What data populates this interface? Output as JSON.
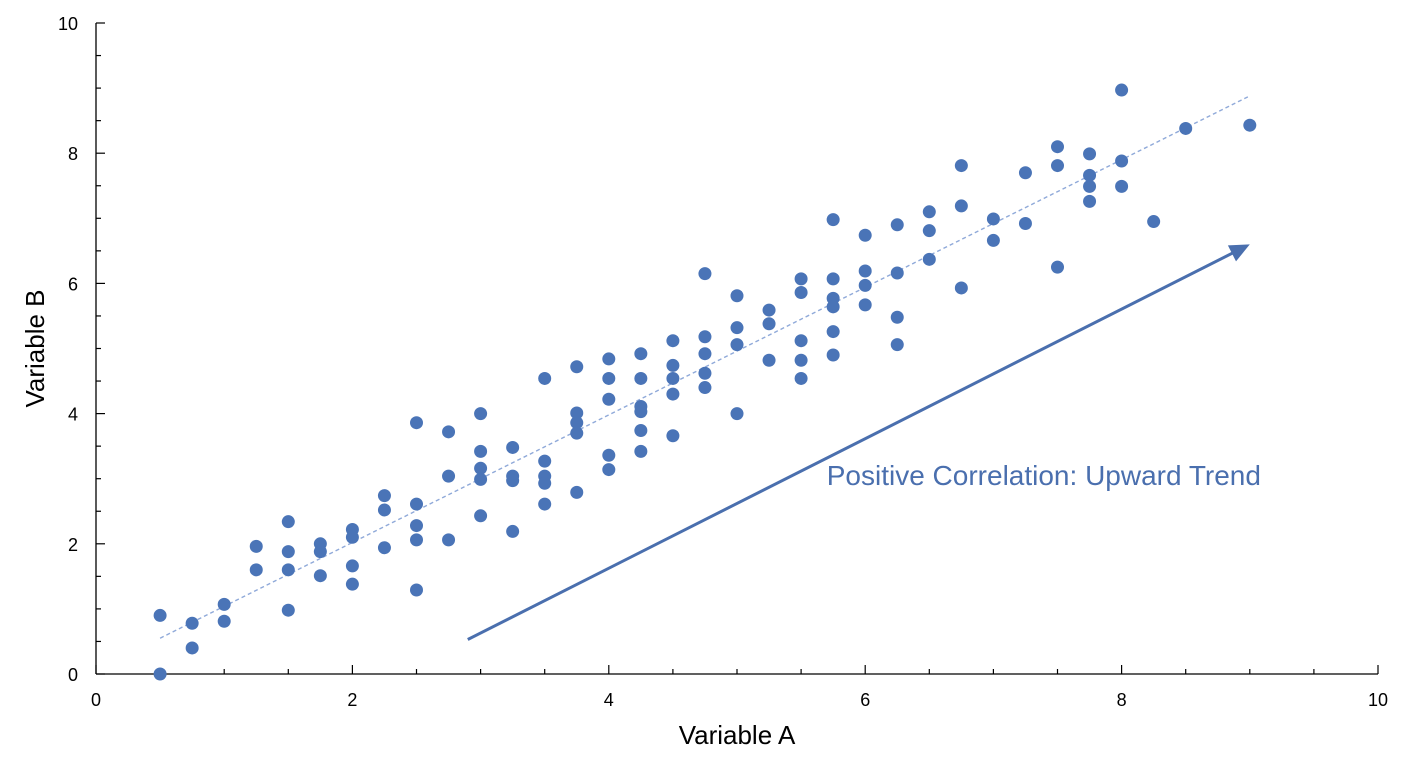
{
  "chart_data": {
    "type": "scatter",
    "title": "",
    "xlabel": "Variable A",
    "ylabel": "Variable B",
    "xlim": [
      0,
      10
    ],
    "ylim": [
      0,
      10
    ],
    "x_ticks": [
      0,
      2,
      4,
      6,
      8,
      10
    ],
    "y_ticks": [
      0,
      2,
      4,
      6,
      8,
      10
    ],
    "x_tick_labels": [
      "0",
      "2",
      "4",
      "6",
      "8",
      "10"
    ],
    "y_tick_labels": [
      "0",
      "2",
      "4",
      "6",
      "8",
      "10"
    ],
    "x_minor_step": 0.5,
    "y_minor_step": 0.5,
    "grid": false,
    "legend": "none",
    "colors": {
      "points": "#4a74b7",
      "trendline": "#8fa9d9",
      "arrow": "#4a6fae",
      "annotation": "#4a6fae"
    },
    "series": [
      {
        "points": [
          [
            0.5,
            0.9
          ],
          [
            0.5,
            0.0
          ],
          [
            0.75,
            0.78
          ],
          [
            0.75,
            0.4
          ],
          [
            1.0,
            1.07
          ],
          [
            1.0,
            0.81
          ],
          [
            1.25,
            1.96
          ],
          [
            1.25,
            1.6
          ],
          [
            1.5,
            2.34
          ],
          [
            1.5,
            1.88
          ],
          [
            1.5,
            1.6
          ],
          [
            1.5,
            0.98
          ],
          [
            1.75,
            2.0
          ],
          [
            1.75,
            1.88
          ],
          [
            1.75,
            1.51
          ],
          [
            2.0,
            2.22
          ],
          [
            2.0,
            2.1
          ],
          [
            2.0,
            1.66
          ],
          [
            2.0,
            1.38
          ],
          [
            2.25,
            2.74
          ],
          [
            2.25,
            2.52
          ],
          [
            2.25,
            1.94
          ],
          [
            2.5,
            3.86
          ],
          [
            2.5,
            2.61
          ],
          [
            2.5,
            2.28
          ],
          [
            2.5,
            2.06
          ],
          [
            2.5,
            1.29
          ],
          [
            2.75,
            3.72
          ],
          [
            2.75,
            3.04
          ],
          [
            2.75,
            2.06
          ],
          [
            3.0,
            4.0
          ],
          [
            3.0,
            3.42
          ],
          [
            3.0,
            3.16
          ],
          [
            3.0,
            2.99
          ],
          [
            3.0,
            2.43
          ],
          [
            3.25,
            3.48
          ],
          [
            3.25,
            3.04
          ],
          [
            3.25,
            2.97
          ],
          [
            3.25,
            2.19
          ],
          [
            3.5,
            4.54
          ],
          [
            3.5,
            3.27
          ],
          [
            3.5,
            3.04
          ],
          [
            3.5,
            2.93
          ],
          [
            3.5,
            2.61
          ],
          [
            3.75,
            4.72
          ],
          [
            3.75,
            4.01
          ],
          [
            3.75,
            3.86
          ],
          [
            3.75,
            3.7
          ],
          [
            3.75,
            2.79
          ],
          [
            4.0,
            4.84
          ],
          [
            4.0,
            4.54
          ],
          [
            4.0,
            4.22
          ],
          [
            4.0,
            3.36
          ],
          [
            4.0,
            3.14
          ],
          [
            4.25,
            4.92
          ],
          [
            4.25,
            4.54
          ],
          [
            4.25,
            4.11
          ],
          [
            4.25,
            4.03
          ],
          [
            4.25,
            3.74
          ],
          [
            4.25,
            3.42
          ],
          [
            4.5,
            5.12
          ],
          [
            4.5,
            4.74
          ],
          [
            4.5,
            4.54
          ],
          [
            4.5,
            4.3
          ],
          [
            4.5,
            3.66
          ],
          [
            4.75,
            6.15
          ],
          [
            4.75,
            5.18
          ],
          [
            4.75,
            4.92
          ],
          [
            4.75,
            4.62
          ],
          [
            4.75,
            4.4
          ],
          [
            5.0,
            5.81
          ],
          [
            5.0,
            5.32
          ],
          [
            5.0,
            5.06
          ],
          [
            5.0,
            4.0
          ],
          [
            5.25,
            5.59
          ],
          [
            5.25,
            5.38
          ],
          [
            5.25,
            4.82
          ],
          [
            5.5,
            6.07
          ],
          [
            5.5,
            5.86
          ],
          [
            5.5,
            5.12
          ],
          [
            5.5,
            4.82
          ],
          [
            5.5,
            4.54
          ],
          [
            5.75,
            6.98
          ],
          [
            5.75,
            6.07
          ],
          [
            5.75,
            5.77
          ],
          [
            5.75,
            5.64
          ],
          [
            5.75,
            5.26
          ],
          [
            5.75,
            4.9
          ],
          [
            6.0,
            6.74
          ],
          [
            6.0,
            6.19
          ],
          [
            6.0,
            5.97
          ],
          [
            6.0,
            5.67
          ],
          [
            6.25,
            6.9
          ],
          [
            6.25,
            6.16
          ],
          [
            6.25,
            5.48
          ],
          [
            6.25,
            5.06
          ],
          [
            6.5,
            7.1
          ],
          [
            6.5,
            6.81
          ],
          [
            6.5,
            6.37
          ],
          [
            6.75,
            7.81
          ],
          [
            6.75,
            7.19
          ],
          [
            6.75,
            5.93
          ],
          [
            7.0,
            6.99
          ],
          [
            7.0,
            6.66
          ],
          [
            7.25,
            7.7
          ],
          [
            7.25,
            6.92
          ],
          [
            7.5,
            8.1
          ],
          [
            7.5,
            7.81
          ],
          [
            7.5,
            6.25
          ],
          [
            7.75,
            7.99
          ],
          [
            7.75,
            7.66
          ],
          [
            7.75,
            7.49
          ],
          [
            7.75,
            7.26
          ],
          [
            8.0,
            8.97
          ],
          [
            8.0,
            7.88
          ],
          [
            8.0,
            7.49
          ],
          [
            8.25,
            6.95
          ],
          [
            8.5,
            8.38
          ],
          [
            9.0,
            8.43
          ]
        ]
      }
    ],
    "trendline": {
      "style": "dashed",
      "from": [
        0.5,
        0.55
      ],
      "to": [
        9.0,
        8.88
      ]
    },
    "annotation": {
      "text": "Positive Correlation: Upward Trend",
      "arrow_from": [
        2.9,
        0.53
      ],
      "arrow_to": [
        9.0,
        6.6
      ],
      "text_at": [
        5.7,
        2.9
      ]
    }
  }
}
